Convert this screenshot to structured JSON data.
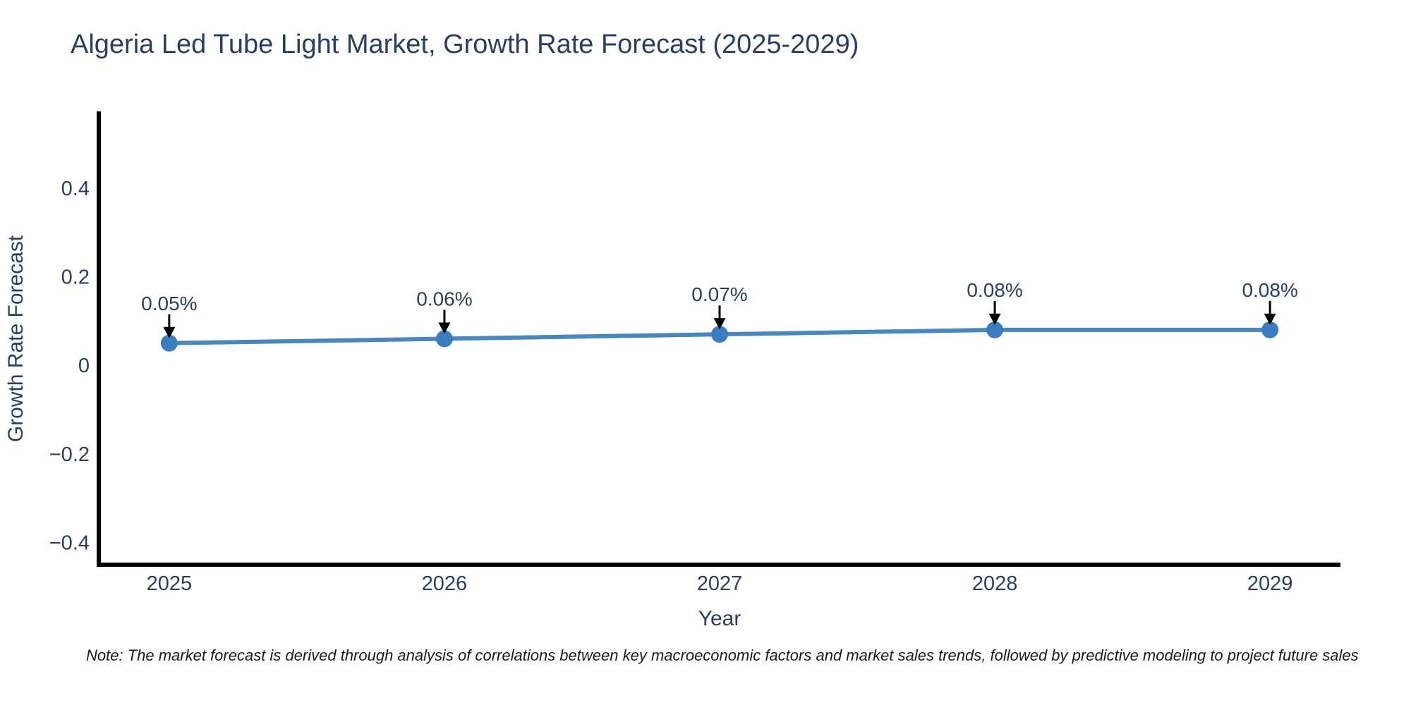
{
  "title": "Algeria Led Tube Light Market, Growth Rate Forecast (2025-2029)",
  "note": "Note: The market forecast is derived through analysis of correlations between key macroeconomic factors and market sales trends, followed by predictive modeling to project future sales",
  "chart_data": {
    "type": "line",
    "title": "Algeria Led Tube Light Market, Growth Rate Forecast (2025-2029)",
    "xlabel": "Year",
    "ylabel": "Growth Rate Forecast",
    "x": [
      2025,
      2026,
      2027,
      2028,
      2029
    ],
    "series": [
      {
        "name": "Growth Rate Forecast",
        "values": [
          0.05,
          0.06,
          0.07,
          0.08,
          0.08
        ]
      }
    ],
    "point_labels": [
      "0.05%",
      "0.06%",
      "0.07%",
      "0.08%",
      "0.08%"
    ],
    "xtick_labels": [
      "2025",
      "2026",
      "2027",
      "2028",
      "2029"
    ],
    "ytick_values": [
      0.4,
      0.2,
      0,
      -0.2,
      -0.4
    ],
    "ytick_labels": [
      "0.4",
      "0.2",
      "0",
      "−0.2",
      "−0.4"
    ],
    "xlim": [
      2024.744,
      2029.256
    ],
    "ylim": [
      -0.45,
      0.57
    ],
    "grid": false,
    "legend": "none",
    "annotation_style": "label-above-with-down-arrow",
    "colors": {
      "line": "#4a87bd",
      "marker": "#3a7ebf",
      "axis": "#000000",
      "chart_text": "#2a3f5f",
      "annotation_text": "#2a3f5f",
      "arrow": "#000000",
      "note_text": "#1a1a1a"
    }
  }
}
